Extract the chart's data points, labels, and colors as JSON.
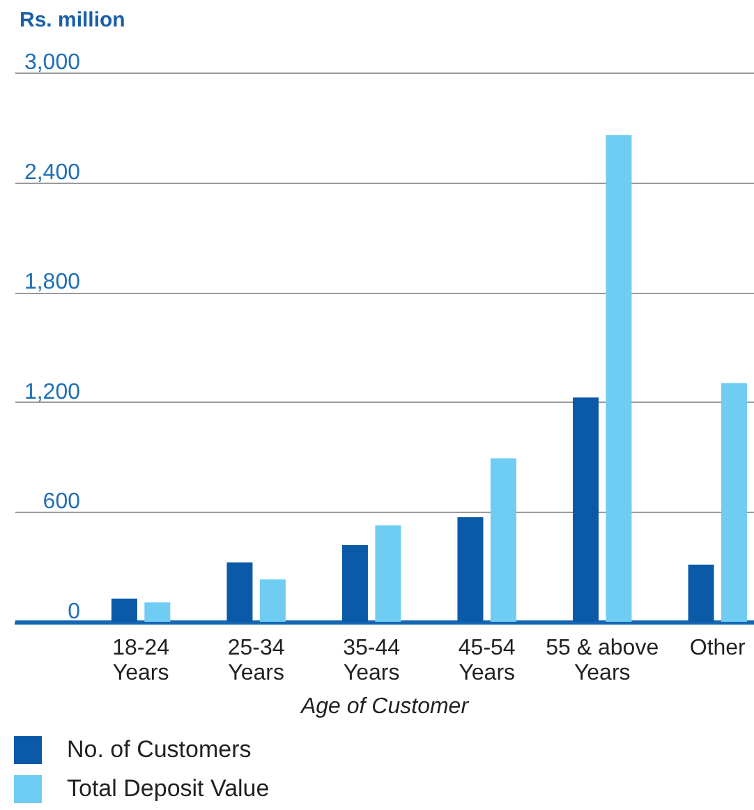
{
  "chart_data": {
    "type": "bar",
    "ylabel": "Rs. million",
    "xlabel": "Age of Customer",
    "categories": [
      "18-24 Years",
      "25-34 Years",
      "35-44 Years",
      "45-54 Years",
      "55 & above Years",
      "Other"
    ],
    "series": [
      {
        "name": "No. of Customers",
        "color": "#0a5aa8",
        "values": [
          127,
          325,
          419,
          571,
          1225,
          312
        ]
      },
      {
        "name": "Total Deposit Value",
        "color": "#6fcdf3",
        "values": [
          106,
          231,
          527,
          893,
          2658,
          1304
        ]
      }
    ],
    "ylim": [
      0,
      3000
    ],
    "yticks": [
      0,
      600,
      {
        "value": 1200,
        "label": "1,200"
      },
      {
        "value": 1800,
        "label": "1,800"
      },
      {
        "value": 2400,
        "label": "2,400"
      },
      {
        "value": 3000,
        "label": "3,000"
      }
    ],
    "grid": "y",
    "legend": "bottom"
  }
}
